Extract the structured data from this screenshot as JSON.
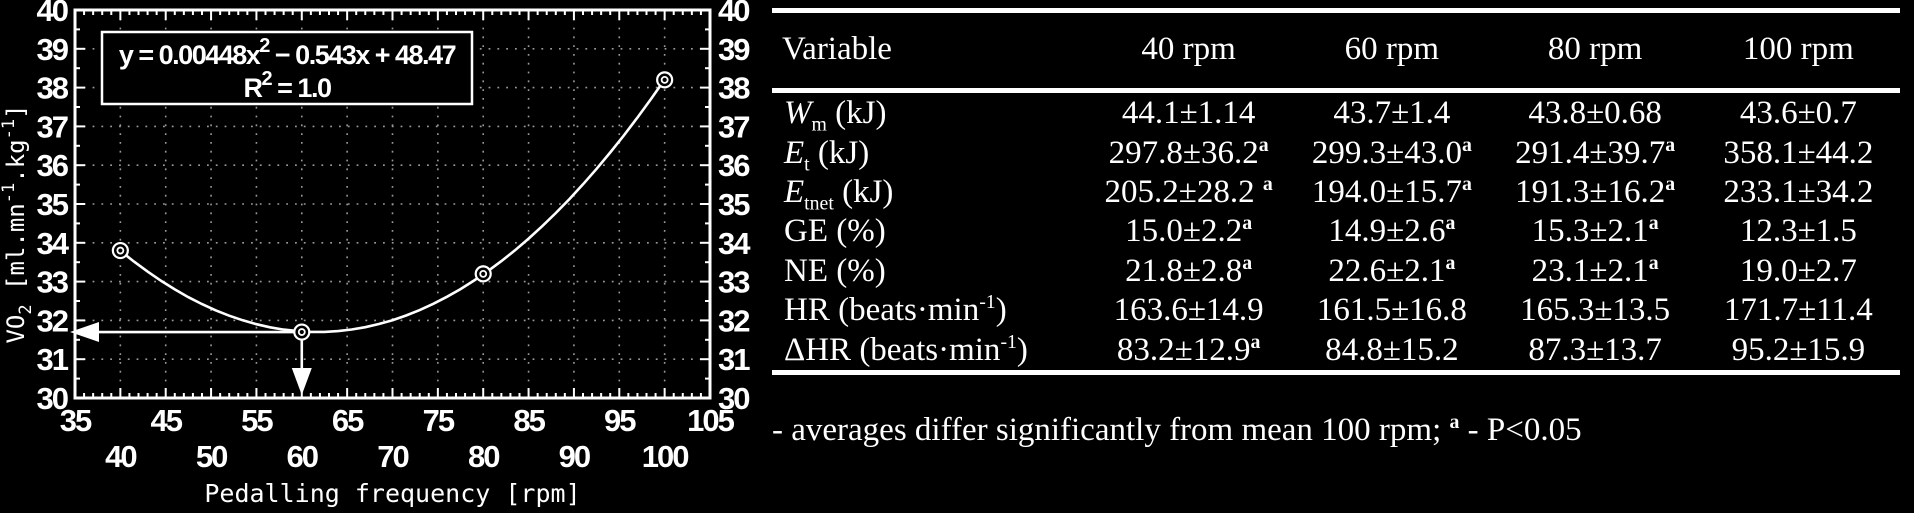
{
  "colors": {
    "background": "#000000",
    "foreground": "#ffffff",
    "grid": "#999999"
  },
  "chart_data": {
    "type": "scatter",
    "title": "",
    "xlabel": "Pedalling frequency [rpm]",
    "ylabel": "VO_{2} [ml.mn^{-1}.kg^{-1}]",
    "xlim": [
      35,
      105
    ],
    "ylim": [
      30,
      40
    ],
    "x_tick_step": 5,
    "y_tick_step": 1,
    "grid": true,
    "x": [
      40,
      60,
      80,
      100
    ],
    "y": [
      33.8,
      31.7,
      33.2,
      38.2
    ],
    "fit_type": "quadratic",
    "equation_line1": "y = 0.00448x^{2} − 0.543x + 48.47",
    "equation_line2": "R^{2} = 1.0",
    "min_marker": {
      "x": 60,
      "y": 31.7
    }
  },
  "table": {
    "headers": [
      "Variable",
      "40 rpm",
      "60 rpm",
      "80 rpm",
      "100 rpm"
    ],
    "rows": [
      {
        "label": "*W*_{m} (kJ)",
        "values": [
          "44.1±1.14",
          "43.7±1.4",
          "43.8±0.68",
          "43.6±0.7"
        ]
      },
      {
        "label": "*E*_{t} (kJ)",
        "values": [
          "297.8±36.2^{a}",
          "299.3±43.0^{a}",
          "291.4±39.7^{a}",
          "358.1±44.2"
        ]
      },
      {
        "label": "*E*_{tnet} (kJ)",
        "values": [
          "205.2±28.2 ^{a}",
          "194.0±15.7^{a}",
          "191.3±16.2^{a}",
          "233.1±34.2"
        ]
      },
      {
        "label": "GE (%)",
        "values": [
          "15.0±2.2^{a}",
          "14.9±2.6^{a}",
          "15.3±2.1^{a}",
          "12.3±1.5"
        ]
      },
      {
        "label": "NE (%)",
        "values": [
          "21.8±2.8^{a}",
          "22.6±2.1^{a}",
          "23.1±2.1^{a}",
          "19.0±2.7"
        ]
      },
      {
        "label": "HR (beats·min^{-1})",
        "values": [
          "163.6±14.9",
          "161.5±16.8",
          "165.3±13.5",
          "171.7±11.4"
        ]
      },
      {
        "label": "ΔHR (beats·min^{-1})",
        "values": [
          "83.2±12.9^{a}",
          "84.8±15.2",
          "87.3±13.7",
          "95.2±15.9"
        ]
      }
    ],
    "footnote": "- averages differ significantly from mean 100 rpm; ^{a} - P<0.05"
  }
}
